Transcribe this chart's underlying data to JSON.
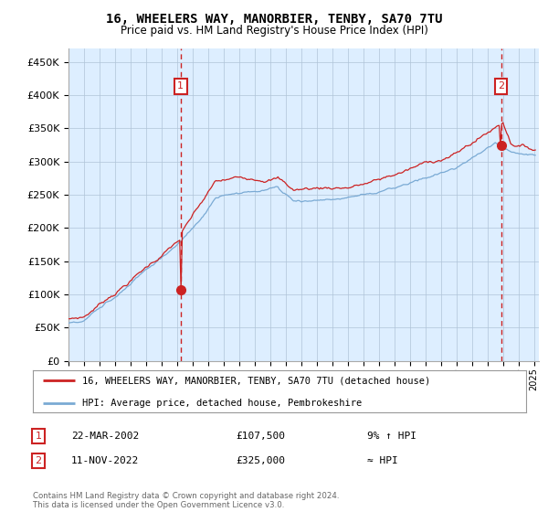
{
  "title": "16, WHEELERS WAY, MANORBIER, TENBY, SA70 7TU",
  "subtitle": "Price paid vs. HM Land Registry's House Price Index (HPI)",
  "legend_line1": "16, WHEELERS WAY, MANORBIER, TENBY, SA70 7TU (detached house)",
  "legend_line2": "HPI: Average price, detached house, Pembrokeshire",
  "annotation1_date": "22-MAR-2002",
  "annotation1_price": "£107,500",
  "annotation1_note": "9% ↑ HPI",
  "annotation2_date": "11-NOV-2022",
  "annotation2_price": "£325,000",
  "annotation2_note": "≈ HPI",
  "footer": "Contains HM Land Registry data © Crown copyright and database right 2024.\nThis data is licensed under the Open Government Licence v3.0.",
  "hpi_color": "#7aaad4",
  "price_color": "#cc2222",
  "marker_color": "#cc2222",
  "bg_color": "#ddeeff",
  "vline_color": "#cc2222",
  "grid_color": "#b0c4d8",
  "box_color": "#cc2222",
  "ylim": [
    0,
    470000
  ],
  "yticks": [
    0,
    50000,
    100000,
    150000,
    200000,
    250000,
    300000,
    350000,
    400000,
    450000
  ],
  "sale1_x": 2002.22,
  "sale1_y": 107500,
  "sale2_x": 2022.87,
  "sale2_y": 325000,
  "xlim_left": 1995.0,
  "xlim_right": 2025.3
}
